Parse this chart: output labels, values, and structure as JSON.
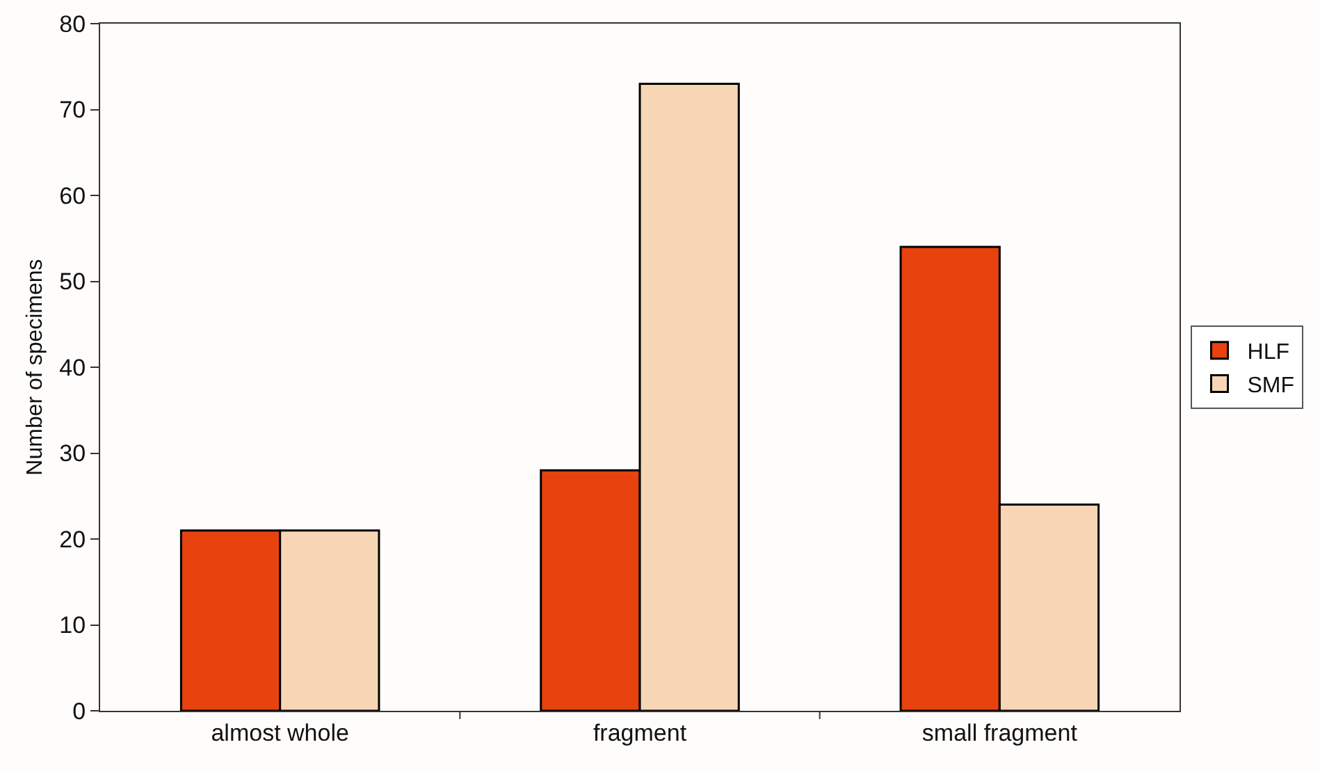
{
  "chart_data": {
    "type": "bar",
    "ylabel": "Number of specimens",
    "categories": [
      "almost whole",
      "fragment",
      "small fragment"
    ],
    "series": [
      {
        "name": "HLF",
        "color": "#e8420e",
        "values": [
          21,
          28,
          54
        ]
      },
      {
        "name": "SMF",
        "color": "#f7d6b6",
        "values": [
          21,
          73,
          24
        ]
      }
    ],
    "ylim": [
      0,
      80
    ],
    "yticks": [
      0,
      10,
      20,
      30,
      40,
      50,
      60,
      70,
      80
    ],
    "grid": false,
    "legend": "right"
  }
}
